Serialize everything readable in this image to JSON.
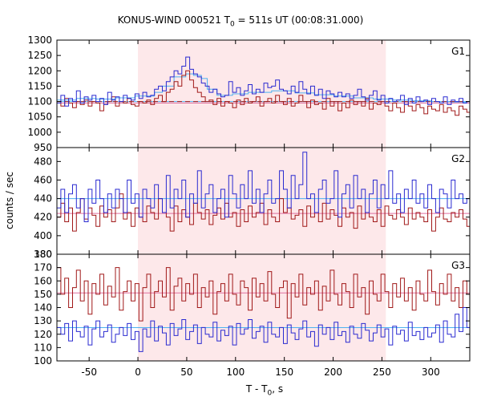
{
  "chart": {
    "title_pre": "KONUS-WIND 000521 T",
    "title_sub": "0",
    "title_post": " = 511s UT (00:08:31.000)",
    "xlabel_pre": "T - T",
    "xlabel_sub": "0",
    "xlabel_post": ", s",
    "ylabel": "counts / sec"
  },
  "colors": {
    "blue_series": "#2a2ad0",
    "red_series": "#a01818",
    "blue_background_fit": "#4db1f0",
    "red_background_fit": "#e070a0",
    "interval_shading": "#fde8ea",
    "panel_frame": "#000000"
  },
  "chart_data": [
    {
      "type": "line",
      "panel": "G1",
      "shaded_interval": [
        0,
        254
      ],
      "xlim": [
        -83,
        340
      ],
      "ylim": [
        950,
        1300
      ],
      "yticks": [
        950,
        1000,
        1050,
        1100,
        1150,
        1200,
        1250,
        1300
      ],
      "xticks": [
        -50,
        0,
        50,
        100,
        150,
        200,
        250,
        300
      ],
      "step": 4,
      "blue_x": [
        -83,
        -79,
        -75,
        -71,
        -67,
        -63,
        -59,
        -55,
        -51,
        -47,
        -43,
        -39,
        -35,
        -31,
        -27,
        -23,
        -19,
        -15,
        -11,
        -7,
        -3,
        1,
        5,
        9,
        13,
        17,
        21,
        25,
        29,
        33,
        37,
        41,
        45,
        49,
        53,
        57,
        61,
        65,
        69,
        73,
        77,
        81,
        85,
        89,
        93,
        97,
        101,
        105,
        109,
        113,
        117,
        121,
        125,
        129,
        133,
        137,
        141,
        145,
        149,
        153,
        157,
        161,
        165,
        169,
        173,
        177,
        181,
        185,
        189,
        193,
        197,
        201,
        205,
        209,
        213,
        217,
        221,
        225,
        229,
        233,
        237,
        241,
        245,
        249,
        253,
        257,
        261,
        265,
        269,
        273,
        277,
        281,
        285,
        289,
        293,
        297,
        301,
        305,
        309,
        313,
        317,
        321,
        325,
        329,
        333,
        337
      ],
      "blue_y": [
        1095,
        1120,
        1085,
        1110,
        1100,
        1135,
        1095,
        1115,
        1105,
        1120,
        1100,
        1110,
        1090,
        1130,
        1105,
        1115,
        1100,
        1120,
        1110,
        1105,
        1125,
        1110,
        1130,
        1115,
        1120,
        1140,
        1150,
        1135,
        1165,
        1180,
        1200,
        1190,
        1215,
        1245,
        1205,
        1190,
        1180,
        1160,
        1150,
        1130,
        1140,
        1125,
        1115,
        1120,
        1165,
        1130,
        1145,
        1120,
        1135,
        1155,
        1125,
        1140,
        1130,
        1160,
        1145,
        1150,
        1170,
        1140,
        1135,
        1125,
        1150,
        1130,
        1165,
        1140,
        1125,
        1150,
        1120,
        1140,
        1110,
        1135,
        1125,
        1115,
        1130,
        1115,
        1125,
        1110,
        1120,
        1140,
        1115,
        1105,
        1120,
        1135,
        1105,
        1120,
        1095,
        1110,
        1100,
        1105,
        1120,
        1090,
        1110,
        1095,
        1115,
        1100,
        1105,
        1090,
        1110,
        1100,
        1095,
        1115,
        1090,
        1105,
        1100,
        1110,
        1095,
        1100
      ],
      "red_x": [
        -83,
        -79,
        -75,
        -71,
        -67,
        -63,
        -59,
        -55,
        -51,
        -47,
        -43,
        -39,
        -35,
        -31,
        -27,
        -23,
        -19,
        -15,
        -11,
        -7,
        -3,
        1,
        5,
        9,
        13,
        17,
        21,
        25,
        29,
        33,
        37,
        41,
        45,
        49,
        53,
        57,
        61,
        65,
        69,
        73,
        77,
        81,
        85,
        89,
        93,
        97,
        101,
        105,
        109,
        113,
        117,
        121,
        125,
        129,
        133,
        137,
        141,
        145,
        149,
        153,
        157,
        161,
        165,
        169,
        173,
        177,
        181,
        185,
        189,
        193,
        197,
        201,
        205,
        209,
        213,
        217,
        221,
        225,
        229,
        233,
        237,
        241,
        245,
        249,
        253,
        257,
        261,
        265,
        269,
        273,
        277,
        281,
        285,
        289,
        293,
        297,
        301,
        305,
        309,
        313,
        317,
        321,
        325,
        329,
        333,
        337
      ],
      "red_y": [
        1100,
        1085,
        1110,
        1095,
        1080,
        1100,
        1090,
        1105,
        1085,
        1100,
        1095,
        1070,
        1090,
        1100,
        1115,
        1085,
        1100,
        1095,
        1110,
        1090,
        1085,
        1100,
        1095,
        1105,
        1090,
        1110,
        1120,
        1100,
        1130,
        1140,
        1165,
        1150,
        1185,
        1200,
        1170,
        1145,
        1130,
        1115,
        1100,
        1105,
        1090,
        1110,
        1085,
        1100,
        1095,
        1080,
        1105,
        1090,
        1110,
        1095,
        1100,
        1115,
        1085,
        1100,
        1110,
        1095,
        1120,
        1100,
        1090,
        1110,
        1085,
        1095,
        1120,
        1100,
        1080,
        1105,
        1090,
        1095,
        1075,
        1110,
        1085,
        1100,
        1070,
        1095,
        1080,
        1105,
        1090,
        1100,
        1085,
        1110,
        1075,
        1095,
        1090,
        1100,
        1085,
        1070,
        1095,
        1080,
        1065,
        1100,
        1085,
        1070,
        1090,
        1080,
        1060,
        1085,
        1075,
        1070,
        1090,
        1065,
        1080,
        1070,
        1055,
        1085,
        1075,
        1065
      ],
      "blue_fit_level": 1100,
      "red_fit_level": 1095,
      "light_steps_x": [
        -83,
        -63,
        -43,
        -23,
        -3,
        17,
        25,
        37,
        49,
        57,
        65,
        71,
        81,
        97,
        113,
        137,
        161,
        181,
        201,
        221,
        241,
        261,
        281,
        301,
        321,
        337
      ],
      "light_steps_y": [
        1105,
        1110,
        1108,
        1112,
        1118,
        1130,
        1150,
        1180,
        1190,
        1185,
        1175,
        1140,
        1120,
        1125,
        1130,
        1135,
        1128,
        1122,
        1118,
        1112,
        1108,
        1105,
        1102,
        1100,
        1098,
        1098
      ],
      "dashed_level": 1100,
      "annotation": "G1"
    },
    {
      "type": "line",
      "panel": "G2",
      "shaded_interval": [
        0,
        254
      ],
      "xlim": [
        -83,
        340
      ],
      "ylim": [
        380,
        495
      ],
      "yticks": [
        380,
        400,
        420,
        440,
        460,
        480
      ],
      "xticks": [
        -50,
        0,
        50,
        100,
        150,
        200,
        250,
        300
      ],
      "step": 4,
      "blue_x": [
        -83,
        -79,
        -75,
        -71,
        -67,
        -63,
        -59,
        -55,
        -51,
        -47,
        -43,
        -39,
        -35,
        -31,
        -27,
        -23,
        -19,
        -15,
        -11,
        -7,
        -3,
        1,
        5,
        9,
        13,
        17,
        21,
        25,
        29,
        33,
        37,
        41,
        45,
        49,
        53,
        57,
        61,
        65,
        69,
        73,
        77,
        81,
        85,
        89,
        93,
        97,
        101,
        105,
        109,
        113,
        117,
        121,
        125,
        129,
        133,
        137,
        141,
        145,
        149,
        153,
        157,
        161,
        165,
        169,
        173,
        177,
        181,
        185,
        189,
        193,
        197,
        201,
        205,
        209,
        213,
        217,
        221,
        225,
        229,
        233,
        237,
        241,
        245,
        249,
        253,
        257,
        261,
        265,
        269,
        273,
        277,
        281,
        285,
        289,
        293,
        297,
        301,
        305,
        309,
        313,
        317,
        321,
        325,
        329,
        333,
        337
      ],
      "blue_y": [
        430,
        450,
        425,
        445,
        455,
        430,
        440,
        415,
        450,
        435,
        460,
        440,
        425,
        445,
        430,
        450,
        440,
        425,
        460,
        435,
        445,
        420,
        450,
        440,
        430,
        455,
        440,
        425,
        465,
        430,
        450,
        440,
        460,
        420,
        445,
        435,
        470,
        430,
        445,
        455,
        425,
        440,
        450,
        420,
        465,
        445,
        430,
        455,
        440,
        470,
        435,
        450,
        425,
        445,
        460,
        435,
        440,
        470,
        450,
        430,
        465,
        440,
        455,
        490,
        440,
        445,
        425,
        450,
        460,
        435,
        440,
        470,
        420,
        445,
        455,
        430,
        465,
        440,
        450,
        425,
        445,
        460,
        430,
        455,
        440,
        470,
        435,
        445,
        425,
        450,
        440,
        460,
        435,
        445,
        430,
        455,
        440,
        425,
        450,
        445,
        430,
        460,
        440,
        445,
        435,
        440
      ],
      "red_x": [
        -83,
        -79,
        -75,
        -71,
        -67,
        -63,
        -59,
        -55,
        -51,
        -47,
        -43,
        -39,
        -35,
        -31,
        -27,
        -23,
        -19,
        -15,
        -11,
        -7,
        -3,
        1,
        5,
        9,
        13,
        17,
        21,
        25,
        29,
        33,
        37,
        41,
        45,
        49,
        53,
        57,
        61,
        65,
        69,
        73,
        77,
        81,
        85,
        89,
        93,
        97,
        101,
        105,
        109,
        113,
        117,
        121,
        125,
        129,
        133,
        137,
        141,
        145,
        149,
        153,
        157,
        161,
        165,
        169,
        173,
        177,
        181,
        185,
        189,
        193,
        197,
        201,
        205,
        209,
        213,
        217,
        221,
        225,
        229,
        233,
        237,
        241,
        245,
        249,
        253,
        257,
        261,
        265,
        269,
        273,
        277,
        281,
        285,
        289,
        293,
        297,
        301,
        305,
        309,
        313,
        317,
        321,
        325,
        329,
        333,
        337
      ],
      "red_y": [
        420,
        435,
        415,
        430,
        405,
        425,
        440,
        418,
        430,
        422,
        410,
        432,
        420,
        428,
        415,
        430,
        445,
        418,
        425,
        410,
        430,
        420,
        415,
        432,
        425,
        418,
        440,
        425,
        420,
        405,
        432,
        415,
        428,
        420,
        412,
        435,
        425,
        418,
        428,
        412,
        422,
        430,
        418,
        435,
        420,
        425,
        410,
        428,
        415,
        432,
        420,
        425,
        435,
        412,
        428,
        420,
        415,
        440,
        425,
        430,
        418,
        422,
        428,
        410,
        432,
        420,
        425,
        415,
        435,
        418,
        428,
        422,
        410,
        430,
        420,
        425,
        408,
        432,
        418,
        425,
        420,
        415,
        428,
        410,
        432,
        422,
        418,
        428,
        420,
        412,
        430,
        418,
        425,
        420,
        415,
        428,
        405,
        420,
        430,
        418,
        415,
        425,
        420,
        428,
        418,
        410
      ],
      "blue_fit_level": 440,
      "red_fit_level": 424,
      "annotation": "G2"
    },
    {
      "type": "line",
      "panel": "G3",
      "shaded_interval": [
        0,
        254
      ],
      "xlim": [
        -83,
        340
      ],
      "ylim": [
        100,
        180
      ],
      "yticks": [
        100,
        110,
        120,
        130,
        140,
        150,
        160,
        170,
        180
      ],
      "xticks": [
        -50,
        0,
        50,
        100,
        150,
        200,
        250,
        300
      ],
      "step": 4,
      "blue_x": [
        -83,
        -79,
        -75,
        -71,
        -67,
        -63,
        -59,
        -55,
        -51,
        -47,
        -43,
        -39,
        -35,
        -31,
        -27,
        -23,
        -19,
        -15,
        -11,
        -7,
        -3,
        1,
        5,
        9,
        13,
        17,
        21,
        25,
        29,
        33,
        37,
        41,
        45,
        49,
        53,
        57,
        61,
        65,
        69,
        73,
        77,
        81,
        85,
        89,
        93,
        97,
        101,
        105,
        109,
        113,
        117,
        121,
        125,
        129,
        133,
        137,
        141,
        145,
        149,
        153,
        157,
        161,
        165,
        169,
        173,
        177,
        181,
        185,
        189,
        193,
        197,
        201,
        205,
        209,
        213,
        217,
        221,
        225,
        229,
        233,
        237,
        241,
        245,
        249,
        253,
        257,
        261,
        265,
        269,
        273,
        277,
        281,
        285,
        289,
        293,
        297,
        301,
        305,
        309,
        313,
        317,
        321,
        325,
        329,
        333,
        337
      ],
      "blue_y": [
        125,
        120,
        128,
        115,
        130,
        122,
        118,
        126,
        112,
        124,
        130,
        118,
        122,
        127,
        114,
        120,
        125,
        119,
        128,
        116,
        122,
        107,
        124,
        118,
        130,
        115,
        126,
        121,
        112,
        128,
        119,
        124,
        131,
        116,
        122,
        127,
        113,
        125,
        120,
        118,
        129,
        115,
        123,
        119,
        126,
        112,
        128,
        120,
        124,
        131,
        117,
        122,
        126,
        114,
        129,
        120,
        118,
        125,
        113,
        127,
        121,
        116,
        124,
        130,
        118,
        122,
        111,
        127,
        120,
        125,
        116,
        129,
        119,
        122,
        114,
        126,
        120,
        117,
        128,
        123,
        115,
        121,
        127,
        118,
        124,
        112,
        126,
        120,
        123,
        115,
        129,
        119,
        122,
        116,
        125,
        118,
        121,
        127,
        114,
        130,
        120,
        118,
        135,
        122,
        140,
        125
      ],
      "red_x": [
        -83,
        -79,
        -75,
        -71,
        -67,
        -63,
        -59,
        -55,
        -51,
        -47,
        -43,
        -39,
        -35,
        -31,
        -27,
        -23,
        -19,
        -15,
        -11,
        -7,
        -3,
        1,
        5,
        9,
        13,
        17,
        21,
        25,
        29,
        33,
        37,
        41,
        45,
        49,
        53,
        57,
        61,
        65,
        69,
        73,
        77,
        81,
        85,
        89,
        93,
        97,
        101,
        105,
        109,
        113,
        117,
        121,
        125,
        129,
        133,
        137,
        141,
        145,
        149,
        153,
        157,
        161,
        165,
        169,
        173,
        177,
        181,
        185,
        189,
        193,
        197,
        201,
        205,
        209,
        213,
        217,
        221,
        225,
        229,
        233,
        237,
        241,
        245,
        249,
        253,
        257,
        261,
        265,
        269,
        273,
        277,
        281,
        285,
        289,
        293,
        297,
        301,
        305,
        309,
        313,
        317,
        321,
        325,
        329,
        333,
        337
      ],
      "red_y": [
        170,
        150,
        162,
        140,
        155,
        168,
        145,
        160,
        135,
        158,
        150,
        165,
        142,
        156,
        148,
        170,
        138,
        152,
        160,
        145,
        158,
        130,
        155,
        165,
        140,
        152,
        160,
        148,
        170,
        138,
        156,
        162,
        145,
        158,
        150,
        165,
        140,
        155,
        148,
        160,
        135,
        152,
        158,
        145,
        165,
        150,
        142,
        160,
        155,
        138,
        162,
        148,
        158,
        145,
        167,
        150,
        140,
        155,
        160,
        132,
        158,
        148,
        165,
        142,
        155,
        150,
        160,
        138,
        156,
        145,
        168,
        150,
        142,
        158,
        152,
        140,
        165,
        148,
        155,
        135,
        160,
        150,
        145,
        165,
        152,
        140,
        158,
        148,
        162,
        145,
        155,
        138,
        160,
        150,
        145,
        168,
        152,
        142,
        158,
        150,
        165,
        145,
        155,
        140,
        160,
        150
      ],
      "blue_fit_level": 125,
      "red_fit_level": 151,
      "annotation": "G3"
    }
  ]
}
